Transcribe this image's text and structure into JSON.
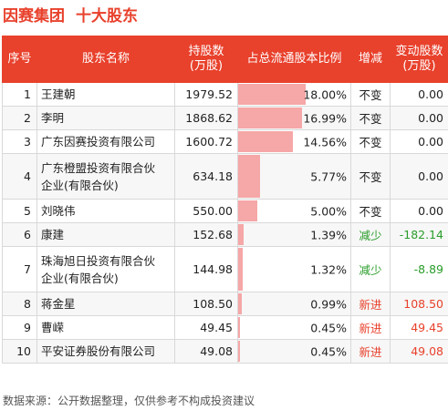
{
  "title": {
    "company": "因赛集团",
    "section": "十大股东"
  },
  "headers": {
    "idx": "序号",
    "name": "股东名称",
    "shares_line1": "持股数",
    "shares_line2": "(万股)",
    "ratio": "占总流通股本比例",
    "change": "增减",
    "delta_line1": "变动股数",
    "delta_line2": "(万股)"
  },
  "rows": [
    {
      "idx": "1",
      "name_line1": "王建朝",
      "name_line2": "",
      "shares": "1979.52",
      "ratio": "18.00%",
      "ratio_value": 18.0,
      "change": "不变",
      "change_type": "same",
      "delta": "0.00"
    },
    {
      "idx": "2",
      "name_line1": "李明",
      "name_line2": "",
      "shares": "1868.62",
      "ratio": "16.99%",
      "ratio_value": 16.99,
      "change": "不变",
      "change_type": "same",
      "delta": "0.00"
    },
    {
      "idx": "3",
      "name_line1": "广东因赛投资有限公司",
      "name_line2": "",
      "shares": "1600.72",
      "ratio": "14.56%",
      "ratio_value": 14.56,
      "change": "不变",
      "change_type": "same",
      "delta": "0.00"
    },
    {
      "idx": "4",
      "name_line1": "广东橙盟投资有限合伙",
      "name_line2": "企业(有限合伙)",
      "shares": "634.18",
      "ratio": "5.77%",
      "ratio_value": 5.77,
      "change": "不变",
      "change_type": "same",
      "delta": "0.00"
    },
    {
      "idx": "5",
      "name_line1": "刘晓伟",
      "name_line2": "",
      "shares": "550.00",
      "ratio": "5.00%",
      "ratio_value": 5.0,
      "change": "不变",
      "change_type": "same",
      "delta": "0.00"
    },
    {
      "idx": "6",
      "name_line1": "康建",
      "name_line2": "",
      "shares": "152.68",
      "ratio": "1.39%",
      "ratio_value": 1.39,
      "change": "减少",
      "change_type": "down",
      "delta": "-182.14"
    },
    {
      "idx": "7",
      "name_line1": "珠海旭日投资有限合伙",
      "name_line2": "企业(有限合伙)",
      "shares": "144.98",
      "ratio": "1.32%",
      "ratio_value": 1.32,
      "change": "减少",
      "change_type": "down",
      "delta": "-8.89"
    },
    {
      "idx": "8",
      "name_line1": "蒋金星",
      "name_line2": "",
      "shares": "108.50",
      "ratio": "0.99%",
      "ratio_value": 0.99,
      "change": "新进",
      "change_type": "new",
      "delta": "108.50"
    },
    {
      "idx": "9",
      "name_line1": "曹嵘",
      "name_line2": "",
      "shares": "49.45",
      "ratio": "0.45%",
      "ratio_value": 0.45,
      "change": "新进",
      "change_type": "new",
      "delta": "49.45"
    },
    {
      "idx": "10",
      "name_line1": "平安证券股份有限公司",
      "name_line2": "",
      "shares": "49.08",
      "ratio": "0.45%",
      "ratio_value": 0.45,
      "change": "新进",
      "change_type": "new",
      "delta": "49.08"
    }
  ],
  "footer": "数据来源：公开数据整理，仅供参考不构成投资建议",
  "colors": {
    "accent": "#e8412c",
    "bar": "#f6a7a7",
    "down": "#2a9d2a",
    "new": "#e8412c"
  }
}
